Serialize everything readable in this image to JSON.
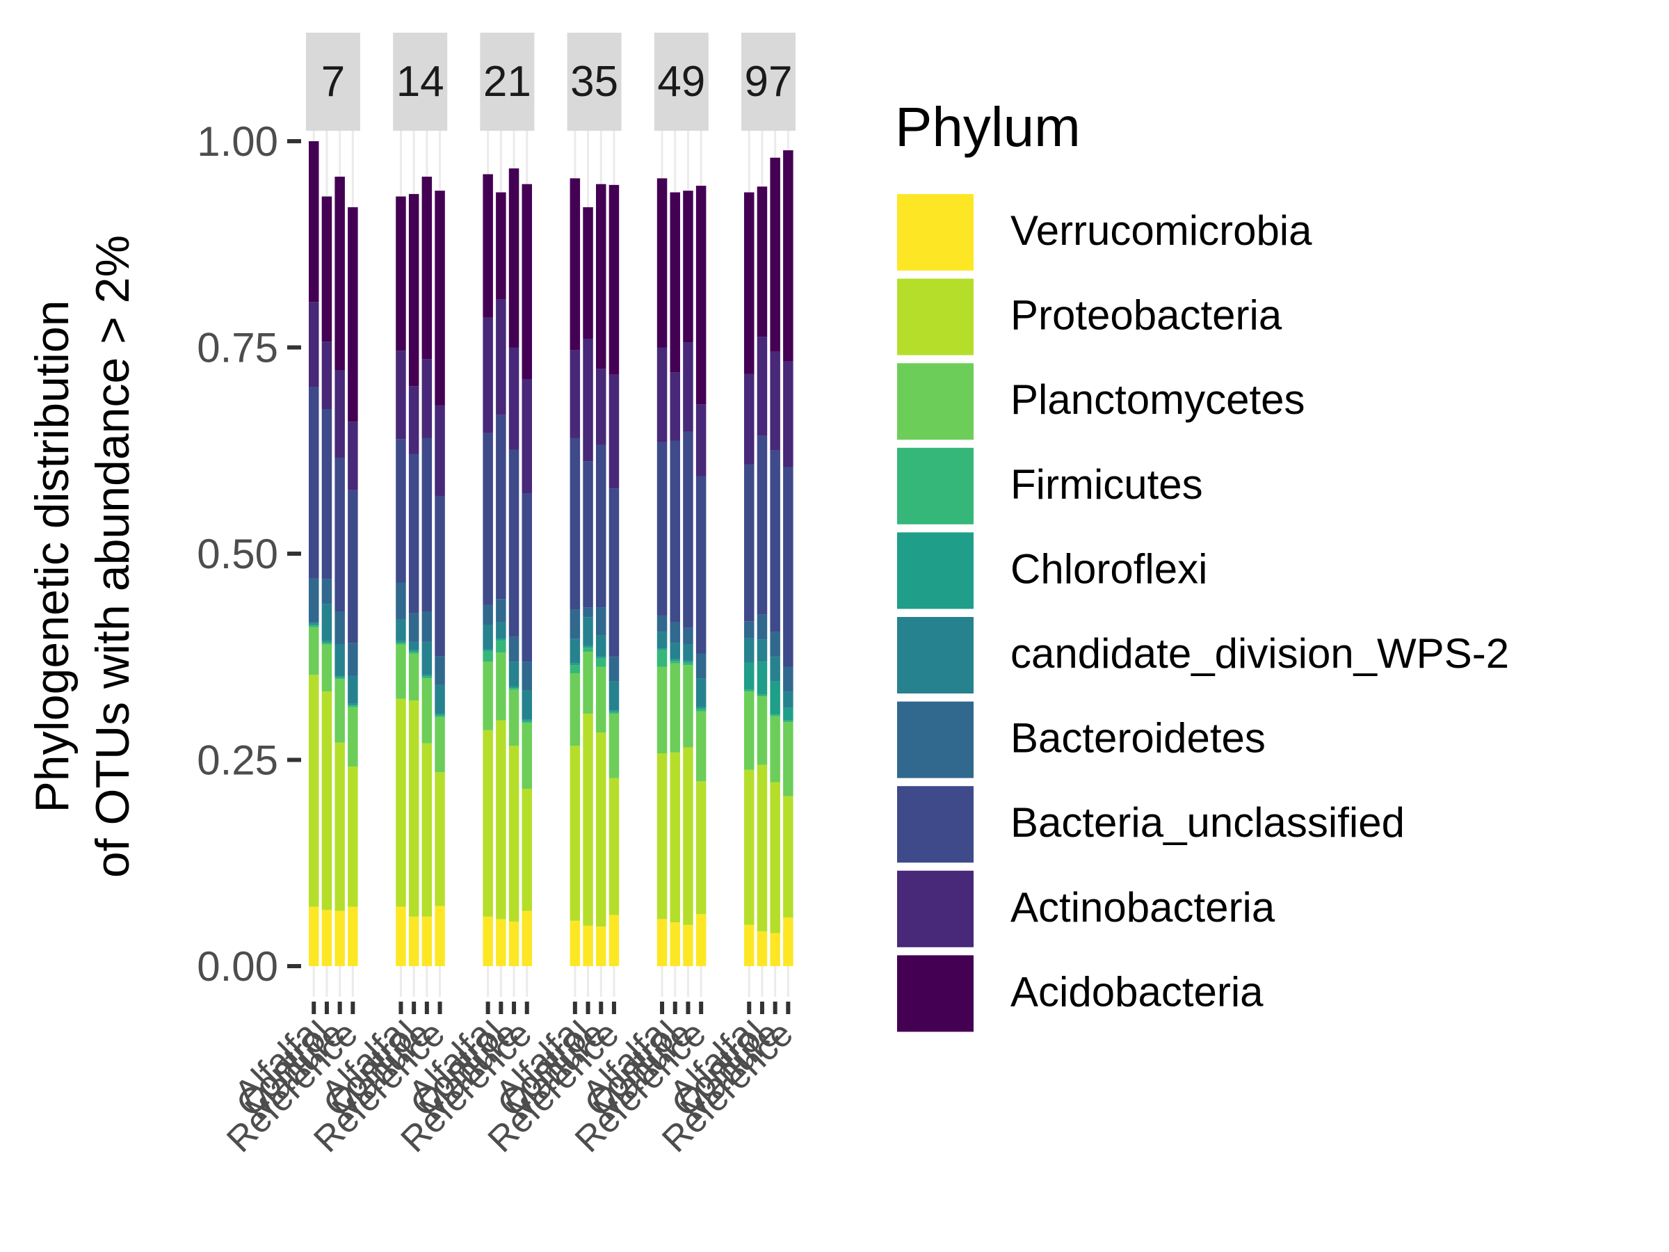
{
  "chart_data": {
    "type": "bar",
    "stacked": true,
    "facet_labels": [
      "7",
      "14",
      "21",
      "35",
      "49",
      "97"
    ],
    "categories": [
      "Alfalfa",
      "Control",
      "Manure",
      "Reference"
    ],
    "ylabel_line1": "Phylogenetic distribution",
    "ylabel_line2": "of OTUs with abundance > 2%",
    "xlabel": "",
    "ylim": [
      -0.03,
      1.05
    ],
    "yticks": [
      "0.00",
      "0.25",
      "0.50",
      "0.75",
      "1.00"
    ],
    "ytick_values": [
      0,
      0.25,
      0.5,
      0.75,
      1.0
    ],
    "legend_title": "Phylum",
    "legend_position": "right",
    "series": [
      {
        "name": "Verrucomicrobia",
        "color": "#FDE725",
        "values": [
          [
            0.072,
            0.068,
            0.067,
            0.072
          ],
          [
            0.072,
            0.06,
            0.06,
            0.073
          ],
          [
            0.06,
            0.057,
            0.054,
            0.067
          ],
          [
            0.055,
            0.049,
            0.048,
            0.062
          ],
          [
            0.057,
            0.053,
            0.05,
            0.063
          ],
          [
            0.05,
            0.042,
            0.04,
            0.059
          ]
        ]
      },
      {
        "name": "Proteobacteria",
        "color": "#B5DE2B",
        "values": [
          [
            0.281,
            0.265,
            0.204,
            0.17
          ],
          [
            0.252,
            0.262,
            0.21,
            0.162
          ],
          [
            0.226,
            0.241,
            0.213,
            0.148
          ],
          [
            0.212,
            0.257,
            0.235,
            0.166
          ],
          [
            0.201,
            0.206,
            0.215,
            0.161
          ],
          [
            0.188,
            0.202,
            0.183,
            0.147
          ]
        ]
      },
      {
        "name": "Planctomycetes",
        "color": "#6CCE59",
        "values": [
          [
            0.058,
            0.057,
            0.077,
            0.072
          ],
          [
            0.066,
            0.057,
            0.079,
            0.067
          ],
          [
            0.083,
            0.082,
            0.068,
            0.08
          ],
          [
            0.088,
            0.075,
            0.08,
            0.078
          ],
          [
            0.105,
            0.108,
            0.1,
            0.085
          ],
          [
            0.095,
            0.083,
            0.08,
            0.09
          ]
        ]
      },
      {
        "name": "Firmicutes",
        "color": "#35B779",
        "values": [
          [
            0.002,
            0.002,
            0.002,
            0.002
          ],
          [
            0.002,
            0.002,
            0.002,
            0.002
          ],
          [
            0.013,
            0.015,
            0.002,
            0.002
          ],
          [
            0.01,
            0.005,
            0.01,
            0.002
          ],
          [
            0.02,
            0.003,
            0.003,
            0.003
          ],
          [
            0.002,
            0.002,
            0.002,
            0.002
          ]
        ]
      },
      {
        "name": "Chloroflexi",
        "color": "#1F9E89",
        "values": [
          [
            0.002,
            0.002,
            0.002,
            0.002
          ],
          [
            0.002,
            0.002,
            0.002,
            0.002
          ],
          [
            0.002,
            0.002,
            0.002,
            0.002
          ],
          [
            0.002,
            0.002,
            0.002,
            0.002
          ],
          [
            0.002,
            0.002,
            0.002,
            0.002
          ],
          [
            0.033,
            0.04,
            0.04,
            0.015
          ]
        ]
      },
      {
        "name": "candidate_division_WPS-2",
        "color": "#26828E",
        "values": [
          [
            0.002,
            0.045,
            0.038,
            0.034
          ],
          [
            0.026,
            0.01,
            0.04,
            0.035
          ],
          [
            0.03,
            0.02,
            0.03,
            0.035
          ],
          [
            0.03,
            0.035,
            0.026,
            0.035
          ],
          [
            0.02,
            0.02,
            0.02,
            0.035
          ],
          [
            0.03,
            0.027,
            0.03,
            0.02
          ]
        ]
      },
      {
        "name": "Bacteroidetes",
        "color": "#31688E",
        "values": [
          [
            0.053,
            0.03,
            0.04,
            0.04
          ],
          [
            0.045,
            0.035,
            0.037,
            0.035
          ],
          [
            0.024,
            0.028,
            0.03,
            0.035
          ],
          [
            0.035,
            0.012,
            0.034,
            0.03
          ],
          [
            0.02,
            0.025,
            0.02,
            0.03
          ],
          [
            0.02,
            0.03,
            0.03,
            0.03
          ]
        ]
      },
      {
        "name": "Bacteria_unclassified",
        "color": "#3E4A89",
        "values": [
          [
            0.232,
            0.206,
            0.186,
            0.185
          ],
          [
            0.174,
            0.193,
            0.21,
            0.194
          ],
          [
            0.208,
            0.223,
            0.227,
            0.204
          ],
          [
            0.208,
            0.177,
            0.197,
            0.204
          ],
          [
            0.21,
            0.22,
            0.238,
            0.215
          ],
          [
            0.19,
            0.217,
            0.22,
            0.242
          ]
        ]
      },
      {
        "name": "Actinobacteria",
        "color": "#482878",
        "values": [
          [
            0.103,
            0.082,
            0.106,
            0.083
          ],
          [
            0.107,
            0.082,
            0.096,
            0.11
          ],
          [
            0.14,
            0.14,
            0.124,
            0.138
          ],
          [
            0.107,
            0.148,
            0.092,
            0.138
          ],
          [
            0.115,
            0.083,
            0.108,
            0.087
          ],
          [
            0.11,
            0.12,
            0.12,
            0.128
          ]
        ]
      },
      {
        "name": "Acidobacteria",
        "color": "#440154",
        "values": [
          [
            0.195,
            0.176,
            0.235,
            0.26
          ],
          [
            0.187,
            0.233,
            0.221,
            0.26
          ],
          [
            0.174,
            0.13,
            0.217,
            0.237
          ],
          [
            0.208,
            0.16,
            0.224,
            0.23
          ],
          [
            0.205,
            0.218,
            0.184,
            0.265
          ],
          [
            0.22,
            0.182,
            0.235,
            0.256
          ]
        ]
      }
    ]
  }
}
